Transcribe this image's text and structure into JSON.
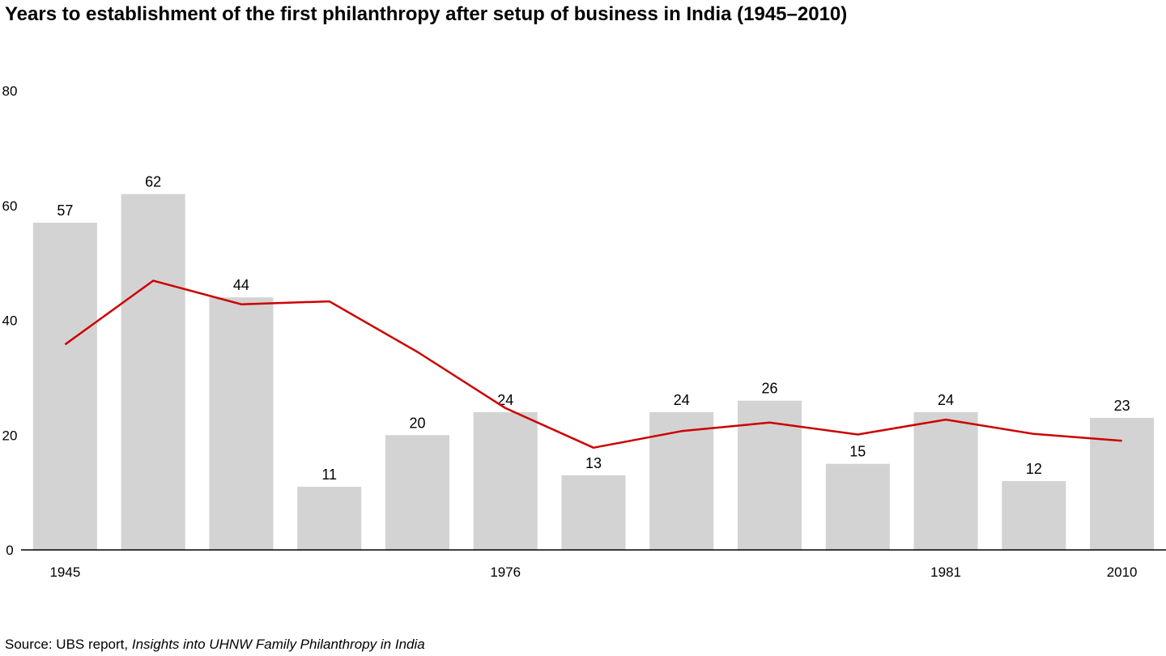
{
  "chart_data": {
    "type": "bar",
    "title": "Years to establishment of the first philanthropy after setup of business in India (1945–2010)",
    "xlabel": "",
    "ylabel": "",
    "ylim": [
      0,
      80
    ],
    "yticks": [
      0,
      20,
      40,
      60,
      80
    ],
    "categories": [
      "1945",
      "",
      "",
      "",
      "",
      "1976",
      "",
      "",
      "",
      "",
      "1981",
      "",
      "2010"
    ],
    "series": [
      {
        "type": "bar",
        "values": [
          57,
          62,
          44,
          11,
          20,
          24,
          13,
          24,
          26,
          15,
          24,
          12,
          23
        ],
        "color": "#d3d3d3",
        "data_labels": true
      },
      {
        "type": "line",
        "values": [
          35.8,
          46.9,
          42.8,
          43.3,
          34.5,
          24.7,
          17.8,
          20.7,
          22.2,
          20.1,
          22.7,
          20.2,
          19.0
        ],
        "color": "#cc0000"
      }
    ],
    "legend": "none",
    "grid": false
  },
  "source": {
    "prefix": "Source: UBS report, ",
    "title": "Insights into UHNW Family Philanthropy in India"
  }
}
